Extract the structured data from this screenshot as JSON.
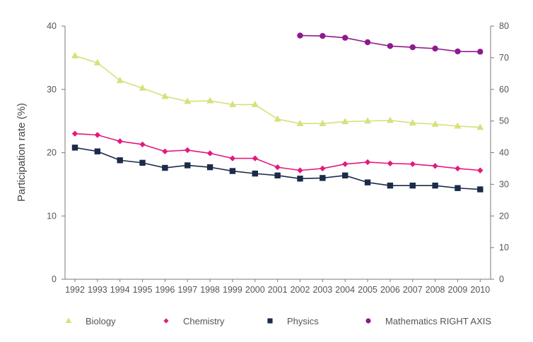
{
  "chart_data": {
    "type": "line",
    "title": "",
    "xlabel": "",
    "ylabel": "Participation rate (%)",
    "x": [
      "1992",
      "1993",
      "1994",
      "1995",
      "1996",
      "1997",
      "1998",
      "1999",
      "2000",
      "2001",
      "2002",
      "2003",
      "2004",
      "2005",
      "2006",
      "2007",
      "2008",
      "2009",
      "2010"
    ],
    "ylim_left": [
      0,
      40
    ],
    "yticks_left": [
      0,
      10,
      20,
      30,
      40
    ],
    "ylim_right": [
      0,
      80
    ],
    "yticks_right": [
      0,
      10,
      20,
      30,
      40,
      50,
      60,
      70,
      80
    ],
    "grid": false,
    "legend_position": "bottom",
    "series": [
      {
        "name": "Biology",
        "axis": "left",
        "marker": "triangle",
        "color": "#d8e07a",
        "values": [
          35.3,
          34.2,
          31.4,
          30.2,
          28.9,
          28.1,
          28.2,
          27.6,
          27.6,
          25.3,
          24.6,
          24.6,
          24.9,
          25.0,
          25.1,
          24.7,
          24.5,
          24.2,
          24.0
        ]
      },
      {
        "name": "Chemistry",
        "axis": "left",
        "marker": "diamond",
        "color": "#e4197d",
        "values": [
          23.0,
          22.8,
          21.8,
          21.3,
          20.2,
          20.4,
          19.9,
          19.1,
          19.1,
          17.7,
          17.2,
          17.5,
          18.2,
          18.5,
          18.3,
          18.2,
          17.9,
          17.5,
          17.2
        ]
      },
      {
        "name": "Physics",
        "axis": "left",
        "marker": "square",
        "color": "#1c2b4a",
        "values": [
          20.8,
          20.2,
          18.8,
          18.4,
          17.6,
          18.0,
          17.7,
          17.1,
          16.7,
          16.4,
          15.9,
          16.0,
          16.4,
          15.3,
          14.8,
          14.8,
          14.8,
          14.4,
          14.2
        ]
      },
      {
        "name": "Mathematics RIGHT AXIS",
        "axis": "right",
        "marker": "circle",
        "color": "#8e1a8e",
        "values": [
          null,
          null,
          null,
          null,
          null,
          null,
          null,
          null,
          null,
          null,
          77.0,
          76.9,
          76.3,
          74.9,
          73.7,
          73.3,
          72.9,
          72.0,
          71.9
        ]
      }
    ]
  }
}
